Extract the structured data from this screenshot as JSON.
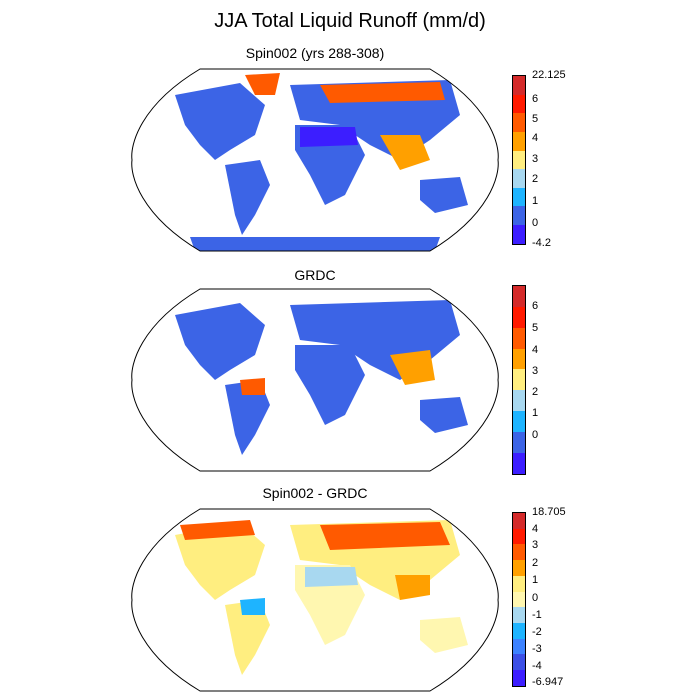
{
  "title": "JJA Total Liquid Runoff (mm/d)",
  "panels": [
    {
      "title": "Spin002 (yrs 288-308)",
      "colorbar": {
        "labels": [
          "22.125",
          "6",
          "5",
          "4",
          "3",
          "2",
          "1",
          "0",
          "-4.2"
        ],
        "colors": [
          "#d42a2a",
          "#ff1a00",
          "#ff5a00",
          "#ffa000",
          "#ffee80",
          "#a8d8f0",
          "#1eb4ff",
          "#3c64e6",
          "#3c1eff"
        ]
      }
    },
    {
      "title": "GRDC",
      "colorbar": {
        "labels": [
          "6",
          "5",
          "4",
          "3",
          "2",
          "1",
          "0"
        ],
        "colors": [
          "#d42a2a",
          "#ff1a00",
          "#ff5a00",
          "#ffa000",
          "#ffee80",
          "#a8d8f0",
          "#1eb4ff",
          "#3c64e6",
          "#3c1eff"
        ]
      }
    },
    {
      "title": "Spin002 - GRDC",
      "colorbar": {
        "labels": [
          "18.705",
          "4",
          "3",
          "2",
          "1",
          "0",
          "-1",
          "-2",
          "-3",
          "-4",
          "-6.947"
        ],
        "colors": [
          "#d42a2a",
          "#ff1a00",
          "#ff5a00",
          "#ffa000",
          "#ffee80",
          "#fff7b0",
          "#a8d8f0",
          "#1eb4ff",
          "#3c82ff",
          "#3c50e6",
          "#3c1eff"
        ]
      }
    }
  ]
}
